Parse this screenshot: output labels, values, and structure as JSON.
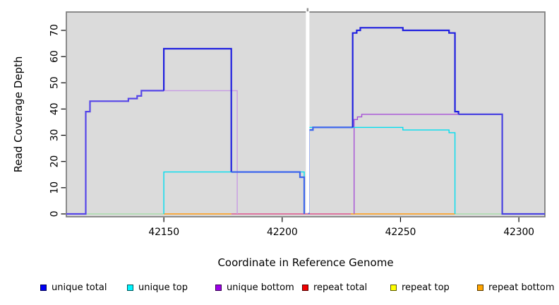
{
  "figure": {
    "title": ""
  },
  "chart_data": {
    "type": "line",
    "subtype": "step-coverage",
    "title": "",
    "x_axis": {
      "label": "Coordinate in Reference Genome",
      "tick_labels": [
        "42150",
        "42200",
        "42250",
        "42300"
      ],
      "tick_values": [
        42150,
        42200,
        42250,
        42300
      ],
      "domain": [
        42108.8,
        42311.0
      ]
    },
    "y_axis": {
      "label": "Read Coverage Depth",
      "tick_labels": [
        "0",
        "10",
        "20",
        "30",
        "40",
        "50",
        "60",
        "70"
      ],
      "tick_values": [
        0,
        10,
        20,
        30,
        40,
        50,
        60,
        70
      ],
      "domain": [
        -1.08,
        77.0
      ]
    },
    "plot": {
      "background": "#DBDBDB",
      "border_color": "#7A7A7A",
      "outer_background": "#FFFFFF"
    },
    "gap": {
      "from": 42210.0,
      "to": 42211.5,
      "color": "#FFFFFF",
      "stub_color": "#909090"
    },
    "legend": {
      "items": [
        {
          "label": "unique total",
          "color": "#0000F5"
        },
        {
          "label": "unique top",
          "color": "#00F5FF"
        },
        {
          "label": "unique bottom",
          "color": "#9D00E8"
        },
        {
          "label": "repeat total",
          "color": "#F00000"
        },
        {
          "label": "repeat top",
          "color": "#FFFF00"
        },
        {
          "label": "repeat bottom",
          "color": "#FFA500"
        }
      ]
    },
    "series": [
      {
        "name": "repeat top",
        "legend_color": "#FFFF00",
        "paths": [
          {
            "color": "#A9DCAC",
            "width": 1.4,
            "pts": [
              [
                42117,
                0
              ],
              [
                42150,
                0
              ]
            ]
          },
          {
            "color": "#A9DCAC",
            "width": 1.4,
            "pts": [
              [
                42273,
                0
              ],
              [
                42293,
                0
              ]
            ]
          }
        ]
      },
      {
        "name": "repeat total",
        "legend_color": "#F00000",
        "paths": [
          {
            "color": "#E0558C",
            "width": 1.4,
            "pts": [
              [
                42178.5,
                0
              ],
              [
                42229,
                0
              ]
            ]
          }
        ]
      },
      {
        "name": "repeat bottom",
        "legend_color": "#FFA500",
        "paths": [
          {
            "color": "#FF9912",
            "width": 1.4,
            "pts": [
              [
                42150,
                0
              ],
              [
                42178.5,
                0
              ]
            ]
          },
          {
            "color": "#FF9912",
            "width": 1.4,
            "pts": [
              [
                42229,
                0
              ],
              [
                42273,
                0
              ]
            ]
          }
        ]
      },
      {
        "name": "unique bottom",
        "legend_color": "#9D00E8",
        "paths": [
          {
            "color": "#C89BE4",
            "width": 1.4,
            "pts": [
              [
                42150,
                47
              ],
              [
                42181,
                47
              ],
              [
                42181,
                0
              ]
            ]
          },
          {
            "color": "#A64FD6",
            "width": 1.4,
            "pts": [
              [
                42230.4,
                0
              ],
              [
                42230.4,
                36
              ],
              [
                42231.8,
                36
              ],
              [
                42231.8,
                37
              ],
              [
                42233.6,
                37
              ],
              [
                42233.6,
                38
              ],
              [
                42293,
                38
              ]
            ]
          }
        ]
      },
      {
        "name": "unique top",
        "legend_color": "#00F5FF",
        "paths": [
          {
            "color": "#00DEEF",
            "width": 1.4,
            "pts": [
              [
                42150,
                0
              ],
              [
                42150,
                16
              ],
              [
                42209.3,
                16
              ],
              [
                42209.3,
                0
              ]
            ]
          },
          {
            "color": "#00DEEF",
            "width": 1.4,
            "pts": [
              [
                42211.3,
                0
              ],
              [
                42211.3,
                33
              ],
              [
                42251,
                33
              ],
              [
                42251,
                32
              ],
              [
                42270.5,
                32
              ],
              [
                42270.5,
                31
              ],
              [
                42273,
                31
              ],
              [
                42273,
                0
              ]
            ]
          }
        ]
      },
      {
        "name": "unique total",
        "legend_color": "#0000F5",
        "paths": [
          {
            "color": "#5646E8",
            "width": 2.2,
            "pts": [
              [
                42108.8,
                0
              ],
              [
                42117,
                0
              ],
              [
                42117,
                39
              ],
              [
                42118.8,
                39
              ],
              [
                42118.8,
                43
              ],
              [
                42135,
                43
              ],
              [
                42135,
                44
              ],
              [
                42138.7,
                44
              ],
              [
                42138.7,
                45
              ],
              [
                42140.5,
                45
              ],
              [
                42140.5,
                47
              ],
              [
                42150,
                47
              ]
            ]
          },
          {
            "color": "#2020DF",
            "width": 2.2,
            "pts": [
              [
                42150,
                47
              ],
              [
                42150,
                63
              ],
              [
                42178.5,
                63
              ],
              [
                42178.5,
                16
              ]
            ]
          },
          {
            "color": "#3C66EC",
            "width": 2.2,
            "pts": [
              [
                42178.5,
                16
              ],
              [
                42207.5,
                16
              ],
              [
                42207.5,
                14
              ],
              [
                42209.3,
                14
              ],
              [
                42209.3,
                0
              ]
            ]
          },
          {
            "color": "#3C66EC",
            "width": 2.2,
            "pts": [
              [
                42211.3,
                0
              ],
              [
                42211.3,
                32
              ],
              [
                42213,
                32
              ],
              [
                42213,
                33
              ],
              [
                42229.8,
                33
              ]
            ]
          },
          {
            "color": "#2020DF",
            "width": 2.2,
            "pts": [
              [
                42229.8,
                33
              ],
              [
                42229.8,
                69
              ],
              [
                42231.5,
                69
              ],
              [
                42231.5,
                70
              ],
              [
                42233,
                70
              ],
              [
                42233,
                71
              ],
              [
                42251,
                71
              ],
              [
                42251,
                70
              ],
              [
                42270.5,
                70
              ],
              [
                42270.5,
                69
              ],
              [
                42273,
                69
              ],
              [
                42273,
                39
              ],
              [
                42274.5,
                39
              ],
              [
                42274.5,
                38
              ]
            ]
          },
          {
            "color": "#4A43E0",
            "width": 2.2,
            "pts": [
              [
                42274.5,
                38
              ],
              [
                42293,
                38
              ],
              [
                42293,
                0
              ],
              [
                42311,
                0
              ]
            ]
          }
        ]
      }
    ]
  }
}
